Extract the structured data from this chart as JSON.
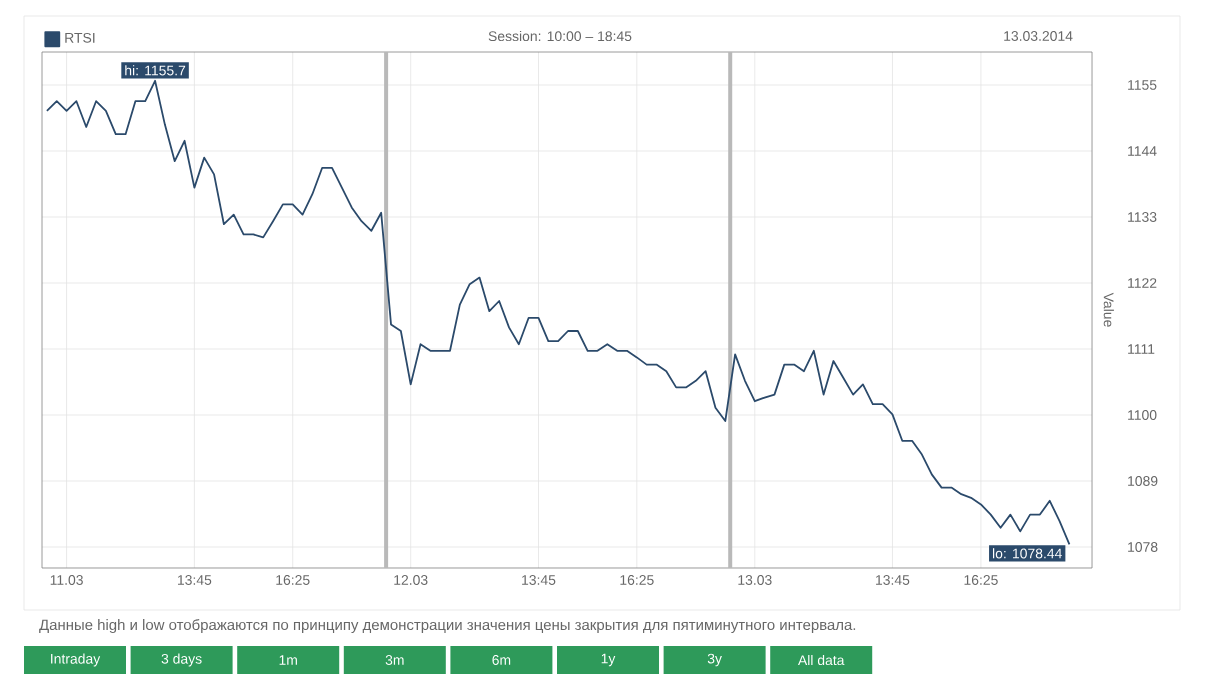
{
  "chart_data": {
    "type": "line",
    "subtitle": "Session: 10:00 – 18:45",
    "ylabel": "Value",
    "categories": [
      null,
      null,
      "11.03",
      null,
      null,
      null,
      null,
      null,
      null,
      null,
      null,
      null,
      null,
      null,
      null,
      "13:45",
      null,
      null,
      null,
      null,
      null,
      null,
      null,
      null,
      null,
      "16:25",
      null,
      null,
      null,
      null,
      null,
      null,
      null,
      null,
      null,
      null,
      null,
      "12.03",
      null,
      null,
      null,
      null,
      null,
      null,
      null,
      null,
      null,
      null,
      null,
      null,
      "13:45",
      null,
      null,
      null,
      null,
      null,
      null,
      null,
      null,
      null,
      "16:25",
      null,
      null,
      null,
      null,
      null,
      null,
      null,
      null,
      null,
      null,
      null,
      "13.03",
      null,
      null,
      null,
      null,
      null,
      null,
      null,
      null,
      null,
      null,
      null,
      null,
      null,
      "13:45",
      null,
      null,
      null,
      null,
      null,
      null,
      null,
      null,
      "16:25",
      null,
      null,
      null,
      null,
      null,
      null,
      null,
      null,
      null
    ],
    "ylim": [
      1074.5,
      1160.5
    ],
    "yticks": [
      1078,
      1089,
      1100,
      1111,
      1122,
      1133,
      1144,
      1155
    ],
    "grid": true,
    "legend": "top left",
    "series": [
      {
        "name": "RTSI",
        "color": "#2b4a6b",
        "values": [
          1150.7,
          1152.3,
          1150.7,
          1152.3,
          1148.0,
          1152.3,
          1150.7,
          1146.8,
          1146.8,
          1152.3,
          1152.3,
          1155.7,
          1148.4,
          1142.3,
          1145.7,
          1137.9,
          1142.9,
          1140.1,
          1131.8,
          1133.4,
          1130.1,
          1130.1,
          1129.6,
          1132.3,
          1135.1,
          1135.1,
          1133.4,
          1136.8,
          1141.2,
          1141.2,
          1137.9,
          1134.6,
          1132.3,
          1130.7,
          1133.7,
          1115.1,
          1114.0,
          1105.1,
          1111.8,
          1110.7,
          1110.7,
          1110.7,
          1118.4,
          1121.8,
          1122.9,
          1117.3,
          1119.0,
          1114.6,
          1111.8,
          1116.2,
          1116.2,
          1112.3,
          1112.3,
          1114.0,
          1114.0,
          1110.7,
          1110.7,
          1111.8,
          1110.7,
          1110.7,
          1109.6,
          1108.4,
          1108.4,
          1107.3,
          1104.6,
          1104.6,
          1105.7,
          1107.3,
          1101.2,
          1099.0,
          1110.1,
          1105.7,
          1102.3,
          1102.9,
          1103.4,
          1108.4,
          1108.4,
          1107.3,
          1110.7,
          1103.4,
          1109.0,
          1106.2,
          1103.4,
          1105.1,
          1101.8,
          1101.8,
          1100.1,
          1095.7,
          1095.7,
          1093.4,
          1090.1,
          1087.9,
          1087.9,
          1086.8,
          1086.2,
          1085.1,
          1083.4,
          1081.2,
          1083.4,
          1080.6,
          1083.4,
          1083.4,
          1085.7,
          1082.3,
          1078.44
        ]
      }
    ],
    "annotations": [
      {
        "text": "hi: 1155.7",
        "y": 1155.7
      },
      "lo: 1078.44",
      "13.03.2014",
      "Данные high и low отображаются по принципу демонстрации значения цены закрытия для пятиминутного интервала.",
      "Intraday",
      "3 days",
      "1m",
      "3m",
      "6m",
      "1y",
      "3y",
      "All data"
    ]
  }
}
